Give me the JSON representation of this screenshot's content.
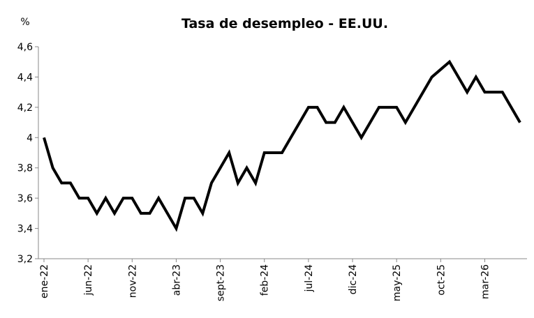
{
  "chart_data": {
    "type": "line",
    "title": "Tasa de desempleo - EE.UU.",
    "y_label": "%",
    "categories": [
      "ene-22",
      null,
      null,
      null,
      null,
      "jun-22",
      null,
      null,
      null,
      null,
      "nov-22",
      null,
      null,
      null,
      null,
      "abr-23",
      null,
      null,
      null,
      null,
      "sept-23",
      null,
      null,
      null,
      null,
      "feb-24",
      null,
      null,
      null,
      null,
      "jul-24",
      null,
      null,
      null,
      null,
      "dic-24",
      null,
      null,
      null,
      null,
      "may-25",
      null,
      null,
      null,
      null,
      "oct-25",
      null,
      null,
      null,
      null,
      "mar-26",
      null,
      null,
      null,
      null
    ],
    "series": [
      {
        "name": "Tasa de desempleo",
        "color": "#000000",
        "values": [
          4.0,
          3.8,
          3.7,
          3.7,
          3.6,
          3.6,
          3.5,
          3.6,
          3.5,
          3.6,
          3.6,
          3.5,
          3.5,
          3.6,
          3.5,
          3.4,
          3.6,
          3.6,
          3.5,
          3.7,
          3.8,
          3.9,
          3.7,
          3.8,
          3.7,
          3.9,
          3.9,
          3.9,
          4.0,
          4.1,
          4.2,
          4.2,
          4.1,
          4.1,
          4.2,
          4.1,
          4.0,
          4.1,
          4.2,
          4.2,
          4.2,
          4.1,
          4.2,
          4.3,
          4.4,
          4.45,
          4.5,
          4.4,
          4.3,
          4.4,
          4.3,
          4.3,
          4.3,
          4.2,
          4.1
        ]
      }
    ],
    "ylim": [
      3.2,
      4.6
    ],
    "yticks": [
      {
        "value": 3.2,
        "label": "3,2"
      },
      {
        "value": 3.4,
        "label": "3,4"
      },
      {
        "value": 3.6,
        "label": "3,6"
      },
      {
        "value": 3.8,
        "label": "3,8"
      },
      4,
      {
        "value": 4.2,
        "label": "4,2"
      },
      {
        "value": 4.4,
        "label": "4,4"
      },
      {
        "value": 4.6,
        "label": "4,6"
      }
    ],
    "grid": false
  }
}
